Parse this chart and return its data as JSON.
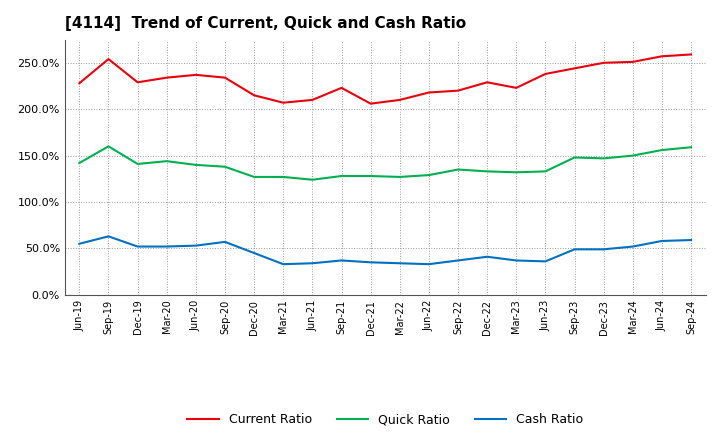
{
  "title": "[4114]  Trend of Current, Quick and Cash Ratio",
  "x_labels": [
    "Jun-19",
    "Sep-19",
    "Dec-19",
    "Mar-20",
    "Jun-20",
    "Sep-20",
    "Dec-20",
    "Mar-21",
    "Jun-21",
    "Sep-21",
    "Dec-21",
    "Mar-22",
    "Jun-22",
    "Sep-22",
    "Dec-22",
    "Mar-23",
    "Jun-23",
    "Sep-23",
    "Dec-23",
    "Mar-24",
    "Jun-24",
    "Sep-24"
  ],
  "current_ratio": [
    228,
    254,
    229,
    234,
    237,
    234,
    215,
    207,
    210,
    223,
    206,
    210,
    218,
    220,
    229,
    223,
    238,
    244,
    250,
    251,
    257,
    259
  ],
  "quick_ratio": [
    142,
    160,
    141,
    144,
    140,
    138,
    127,
    127,
    124,
    128,
    128,
    127,
    129,
    135,
    133,
    132,
    133,
    148,
    147,
    150,
    156,
    159
  ],
  "cash_ratio": [
    55,
    63,
    52,
    52,
    53,
    57,
    45,
    33,
    34,
    37,
    35,
    34,
    33,
    37,
    41,
    37,
    36,
    49,
    49,
    52,
    58,
    59
  ],
  "current_color": "#e8000d",
  "quick_color": "#00b050",
  "cash_color": "#0070c0",
  "background_color": "#ffffff",
  "plot_bg_color": "#ffffff",
  "grid_color": "#999999",
  "ylim": [
    0,
    275
  ],
  "yticks": [
    0,
    50,
    100,
    150,
    200,
    250
  ],
  "legend_labels": [
    "Current Ratio",
    "Quick Ratio",
    "Cash Ratio"
  ]
}
